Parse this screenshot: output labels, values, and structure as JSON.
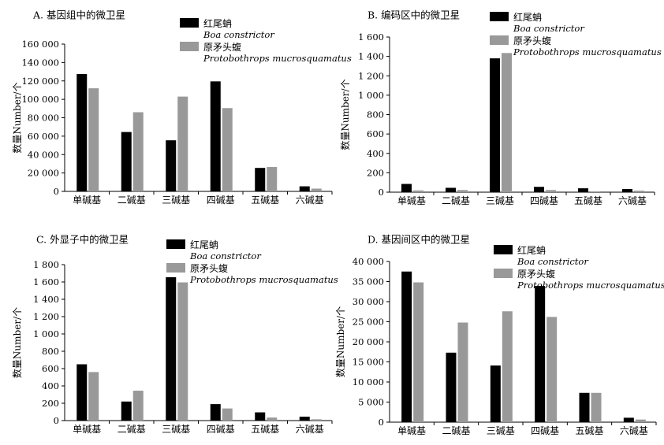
{
  "chart_data": [
    {
      "type": "bar",
      "title": "A. 基因组中的微卫星",
      "ylabel": "数量Number/个",
      "xlabel": "",
      "categories": [
        "单碱基",
        "二碱基",
        "三碱基",
        "四碱基",
        "五碱基",
        "六碱基"
      ],
      "ylim": [
        0,
        160000
      ],
      "yticks": [
        0,
        20000,
        40000,
        60000,
        80000,
        100000,
        120000,
        140000,
        160000
      ],
      "ytick_labels": [
        "0",
        "20 000",
        "40 000",
        "60 000",
        "80 000",
        "100 000",
        "120 000",
        "140 000",
        "160 000"
      ],
      "series": [
        {
          "name": "红尾蚺",
          "name_latin": "Boa constrictor",
          "color": "#000000",
          "values": [
            127500,
            64500,
            55500,
            119500,
            25500,
            5500
          ]
        },
        {
          "name": "原矛头蝮",
          "name_latin": "Protobothrops mucrosquamatus",
          "color": "#999999",
          "values": [
            112000,
            86000,
            103000,
            90500,
            26500,
            3000
          ]
        }
      ],
      "legend_position": "top-right"
    },
    {
      "type": "bar",
      "title": "B. 编码区中的微卫星",
      "ylabel": "数量Number/个",
      "xlabel": "",
      "categories": [
        "单碱基",
        "二碱基",
        "三碱基",
        "四碱基",
        "五碱基",
        "六碱基"
      ],
      "ylim": [
        0,
        1600
      ],
      "yticks": [
        0,
        200,
        400,
        600,
        800,
        1000,
        1200,
        1400,
        1600
      ],
      "ytick_labels": [
        "0",
        "200",
        "400",
        "600",
        "800",
        "1 000",
        "1 200",
        "1 400",
        "1 600"
      ],
      "series": [
        {
          "name": "红尾蚺",
          "name_latin": "Boa constrictor",
          "color": "#000000",
          "values": [
            85,
            45,
            1380,
            55,
            40,
            32
          ]
        },
        {
          "name": "原矛头蝮",
          "name_latin": "Protobothrops mucrosquamatus",
          "color": "#999999",
          "values": [
            18,
            22,
            1435,
            22,
            8,
            16
          ]
        }
      ],
      "legend_position": "top-right"
    },
    {
      "type": "bar",
      "title": "C. 外显子中的微卫星",
      "ylabel": "数量Number/个",
      "xlabel": "",
      "categories": [
        "单碱基",
        "二碱基",
        "三碱基",
        "四碱基",
        "五碱基",
        "六碱基"
      ],
      "ylim": [
        0,
        1800
      ],
      "yticks": [
        0,
        200,
        400,
        600,
        800,
        1000,
        1200,
        1400,
        1600,
        1800
      ],
      "ytick_labels": [
        "0",
        "200",
        "400",
        "600",
        "800",
        "1 000",
        "1 200",
        "1 400",
        "1 600",
        "1 800"
      ],
      "series": [
        {
          "name": "红尾蚺",
          "name_latin": "Boa constrictor",
          "color": "#000000",
          "values": [
            650,
            220,
            1655,
            190,
            95,
            45
          ]
        },
        {
          "name": "原矛头蝮",
          "name_latin": "Protobothrops mucrosquamatus",
          "color": "#999999",
          "values": [
            560,
            345,
            1595,
            140,
            35,
            15
          ]
        }
      ],
      "legend_position": "top-right"
    },
    {
      "type": "bar",
      "title": "D. 基因间区中的微卫星",
      "ylabel": "数量Number/个",
      "xlabel": "",
      "categories": [
        "单碱基",
        "二碱基",
        "三碱基",
        "四碱基",
        "五碱基",
        "六碱基"
      ],
      "ylim": [
        0,
        40000
      ],
      "yticks": [
        0,
        5000,
        10000,
        15000,
        20000,
        25000,
        30000,
        35000,
        40000
      ],
      "ytick_labels": [
        "0",
        "5 000",
        "10 000",
        "15 000",
        "20 000",
        "25 000",
        "30 000",
        "35 000",
        "40 000"
      ],
      "series": [
        {
          "name": "红尾蚺",
          "name_latin": "Boa constrictor",
          "color": "#000000",
          "values": [
            37500,
            17300,
            14100,
            33900,
            7300,
            1100
          ]
        },
        {
          "name": "原矛头蝮",
          "name_latin": "Protobothrops mucrosquamatus",
          "color": "#999999",
          "values": [
            34800,
            24800,
            27600,
            26200,
            7300,
            650
          ]
        }
      ],
      "legend_position": "top-right"
    }
  ]
}
